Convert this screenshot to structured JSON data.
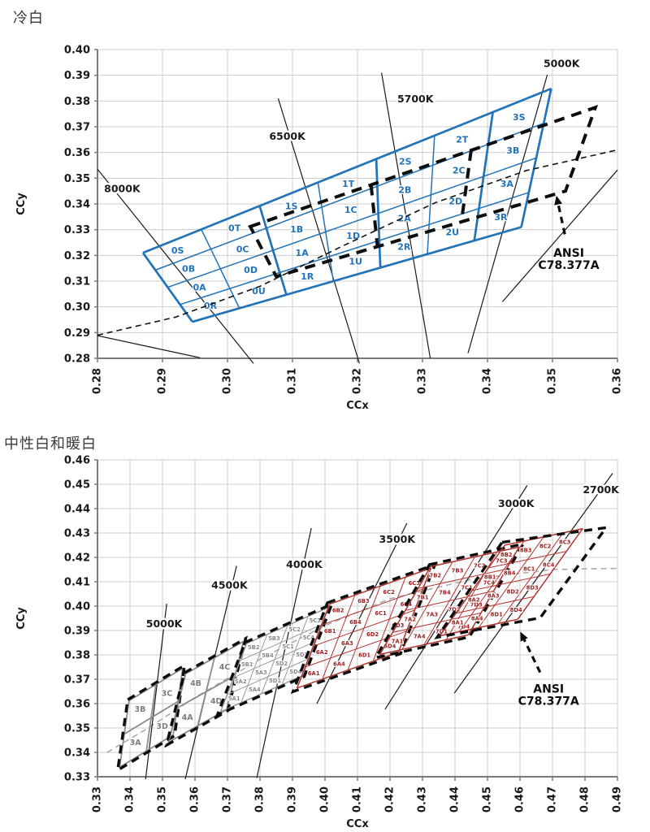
{
  "page": {
    "background": "#ffffff",
    "standard": "ANSI C78.377A"
  },
  "chart_data": [
    {
      "type": "line",
      "title": "冷白",
      "xlabel": "CCx",
      "ylabel": "CCy",
      "x_min": 0.28,
      "x_max": 0.36,
      "y_min": 0.28,
      "y_max": 0.4,
      "grid": true,
      "x_ticks": [
        "0.28",
        "0.29",
        "0.30",
        "0.31",
        "0.32",
        "0.33",
        "0.34",
        "0.35",
        "0.36"
      ],
      "y_ticks": [
        "0.28",
        "0.29",
        "0.30",
        "0.31",
        "0.32",
        "0.33",
        "0.34",
        "0.35",
        "0.36",
        "0.37",
        "0.38",
        "0.39",
        "0.40"
      ],
      "cct_lines": [
        {
          "label": "8000K",
          "x1": 0.28,
          "y1": 0.3535,
          "x2": 0.304,
          "y2": 0.278,
          "lx": 0.2838,
          "ly": 0.3458
        },
        {
          "label": "6500K",
          "x1": 0.3078,
          "y1": 0.381,
          "x2": 0.3203,
          "y2": 0.278,
          "lx": 0.3092,
          "ly": 0.3662
        },
        {
          "label": "5700K",
          "x1": 0.3237,
          "y1": 0.391,
          "x2": 0.3312,
          "y2": 0.28,
          "lx": 0.3289,
          "ly": 0.3808
        },
        {
          "label": "5000K",
          "x1": 0.3492,
          "y1": 0.3902,
          "x2": 0.337,
          "y2": 0.282,
          "lx": 0.3514,
          "ly": 0.3945
        },
        {
          "label": "",
          "x1": 0.36,
          "y1": 0.3532,
          "x2": 0.3423,
          "y2": 0.302
        },
        {
          "label": "",
          "x1": 0.28,
          "y1": 0.2888,
          "x2": 0.2958,
          "y2": 0.2802
        }
      ],
      "locus_dashed": {
        "color": "#111111",
        "points": [
          [
            0.28,
            0.289
          ],
          [
            0.292,
            0.296
          ],
          [
            0.305,
            0.308
          ],
          [
            0.318,
            0.324
          ],
          [
            0.332,
            0.3405
          ],
          [
            0.346,
            0.353
          ],
          [
            0.36,
            0.361
          ]
        ]
      },
      "locus_on_top": true,
      "bin_grids": [
        {
          "name": "cool-white-bins",
          "line_color": "#2273b8",
          "label_color": "#2273b8",
          "font": 11,
          "thin": 1.5,
          "thick": 2.7,
          "thick_cols": [
            0,
            2,
            4,
            6,
            7
          ],
          "corners": {
            "tl": [
              0.287,
              0.321
            ],
            "tr": [
              0.3498,
              0.3848
            ],
            "br": [
              0.3452,
              0.331
            ],
            "bl": [
              0.2946,
              0.2942
            ]
          },
          "labels": [
            [
              "0S",
              "0T",
              "1S",
              "1T",
              "2S",
              "2T",
              "3S"
            ],
            [
              "0B",
              "0C",
              "1B",
              "1C",
              "2B",
              "2C",
              "3B"
            ],
            [
              "0A",
              "0D",
              "1A",
              "1D",
              "2A",
              "2D",
              "3A"
            ],
            [
              "0R",
              "0U",
              "1R",
              "1U",
              "2R",
              "2U",
              "3R"
            ]
          ]
        }
      ],
      "ansi_overlays": [
        {
          "corners": {
            "tl": [
              0.3035,
              0.3312
            ],
            "tr": [
              0.3566,
              0.3775
            ],
            "br": [
              0.352,
              0.345
            ],
            "bl": [
              0.3075,
              0.3118
            ]
          },
          "dividers": [
            0.35,
            0.64
          ]
        }
      ],
      "annotation": {
        "lines": [
          "ANSI",
          "C78.377A"
        ],
        "x": 0.3525,
        "y": 0.3195,
        "line_step": 0.0048,
        "arrow": {
          "x1": 0.3519,
          "y1": 0.3282,
          "x2": 0.3506,
          "y2": 0.3432
        }
      }
    },
    {
      "type": "line",
      "title": "中性白和暖白",
      "xlabel": "CCx",
      "ylabel": "CCy",
      "x_min": 0.33,
      "x_max": 0.49,
      "y_min": 0.33,
      "y_max": 0.46,
      "grid": true,
      "x_ticks": [
        "0.33",
        "0.34",
        "0.35",
        "0.36",
        "0.37",
        "0.38",
        "0.39",
        "0.40",
        "0.41",
        "0.42",
        "0.43",
        "0.44",
        "0.45",
        "0.46",
        "0.47",
        "0.48",
        "0.49"
      ],
      "y_ticks": [
        "0.33",
        "0.34",
        "0.35",
        "0.36",
        "0.37",
        "0.38",
        "0.39",
        "0.40",
        "0.41",
        "0.42",
        "0.43",
        "0.44",
        "0.45",
        "0.46"
      ],
      "cct_lines": [
        {
          "label": "5000K",
          "x1": 0.3513,
          "y1": 0.401,
          "x2": 0.3448,
          "y2": 0.329,
          "lx": 0.3505,
          "ly": 0.3927
        },
        {
          "label": "4500K",
          "x1": 0.3728,
          "y1": 0.4165,
          "x2": 0.357,
          "y2": 0.329,
          "lx": 0.3706,
          "ly": 0.4085
        },
        {
          "label": "4000K",
          "x1": 0.3958,
          "y1": 0.432,
          "x2": 0.379,
          "y2": 0.3295,
          "lx": 0.3936,
          "ly": 0.417
        },
        {
          "label": "3500K",
          "x1": 0.4252,
          "y1": 0.434,
          "x2": 0.3975,
          "y2": 0.36,
          "lx": 0.4222,
          "ly": 0.4273
        },
        {
          "label": "3000K",
          "x1": 0.4622,
          "y1": 0.4495,
          "x2": 0.4185,
          "y2": 0.3577,
          "lx": 0.4588,
          "ly": 0.442
        },
        {
          "label": "2700K",
          "x1": 0.4885,
          "y1": 0.4545,
          "x2": 0.4398,
          "y2": 0.3643,
          "lx": 0.4849,
          "ly": 0.4477
        }
      ],
      "locus_dashed": {
        "color": "#aaaaaa",
        "points": [
          [
            0.333,
            0.34
          ],
          [
            0.345,
            0.3495
          ],
          [
            0.36,
            0.3625
          ],
          [
            0.38,
            0.3782
          ],
          [
            0.4,
            0.392
          ],
          [
            0.42,
            0.403
          ],
          [
            0.445,
            0.411
          ],
          [
            0.47,
            0.415
          ],
          [
            0.49,
            0.4155
          ]
        ]
      },
      "locus_on_top": false,
      "bin_grids": [
        {
          "name": "bins-5000K-group3",
          "line_color": "#8c8c8c",
          "label_color": "#7d7d7d",
          "font": 9.5,
          "thin": 1.8,
          "thick": 1.8,
          "dash_outline": "auto",
          "corners": {
            "tl": [
              0.3397,
              0.3612
            ],
            "tr": [
              0.3562,
              0.3745
            ],
            "br": [
              0.3533,
              0.3472
            ],
            "bl": [
              0.3368,
              0.3339
            ]
          },
          "labels": [
            [
              "3B",
              "3C"
            ],
            [
              "3A",
              "3D"
            ]
          ]
        },
        {
          "name": "bins-4500K-group4",
          "line_color": "#8c8c8c",
          "label_color": "#7d7d7d",
          "font": 9.5,
          "thin": 1.8,
          "thick": 1.8,
          "dash_outline": "auto",
          "corners": {
            "tl": [
              0.3571,
              0.3722
            ],
            "tr": [
              0.3749,
              0.3855
            ],
            "br": [
              0.3697,
              0.3575
            ],
            "bl": [
              0.3519,
              0.3442
            ]
          },
          "labels": [
            [
              "4B",
              "4C"
            ],
            [
              "4A",
              "4D"
            ]
          ]
        },
        {
          "name": "bins-4000K-group5",
          "line_color": "#9a9a9a",
          "label_color": "#8a8a8a",
          "font": 6.8,
          "thin": 1.0,
          "thick": 1.5,
          "dash_outline": "auto",
          "corners": {
            "tl": [
              0.3759,
              0.3847
            ],
            "tr": [
              0.4011,
              0.3995
            ],
            "br": [
              0.3931,
              0.3715
            ],
            "bl": [
              0.3679,
              0.3567
            ]
          },
          "labels": [
            [
              "5B2",
              "5B3",
              "5C2",
              "5C3"
            ],
            [
              "5B1",
              "5B4",
              "5C1",
              "5C4"
            ],
            [
              "5A2",
              "5A3",
              "5D2",
              "5D3"
            ],
            [
              "5A1",
              "5A4",
              "5D1",
              "5D4"
            ]
          ]
        },
        {
          "name": "bins-3500K-group6",
          "line_color": "#b03531",
          "label_color": "#9e1f1f",
          "font": 6.8,
          "thin": 1.0,
          "thick": 1.5,
          "dash_outline": "auto",
          "corners": {
            "tl": [
              0.4014,
              0.4008
            ],
            "tr": [
              0.4326,
              0.4156
            ],
            "br": [
              0.4226,
              0.3811
            ],
            "bl": [
              0.3914,
              0.3664
            ]
          },
          "labels": [
            [
              "6B2",
              "6B3",
              "6C2",
              "6C3"
            ],
            [
              "6B1",
              "6B4",
              "6C1",
              "6C4"
            ],
            [
              "6A2",
              "6A3",
              "6D2",
              "6D3"
            ],
            [
              "6A1",
              "6A4",
              "6D1",
              "6D4"
            ]
          ]
        },
        {
          "name": "bins-3000K-group7",
          "line_color": "#b03531",
          "label_color": "#9e1f1f",
          "font": 6.8,
          "thin": 1.0,
          "thick": 1.5,
          "dash_outline": "auto",
          "corners": {
            "tl": [
              0.4325,
              0.4162
            ],
            "tr": [
              0.4597,
              0.4242
            ],
            "br": [
              0.4441,
              0.3882
            ],
            "bl": [
              0.4169,
              0.3802
            ]
          },
          "labels": [
            [
              "7B2",
              "7B3",
              "7C2",
              "7C3"
            ],
            [
              "7B1",
              "7B4",
              "7C1",
              "7C4"
            ],
            [
              "7A2",
              "7A3",
              "7D2",
              "7D3"
            ],
            [
              "7A1",
              "7A4",
              "7D1",
              "7D4"
            ]
          ]
        },
        {
          "name": "bins-2700K-group8",
          "line_color": "#b03531",
          "label_color": "#9e1f1f",
          "font": 6.8,
          "thin": 1.0,
          "thick": 1.5,
          "dash_outline": {
            "tl": [
              0.4545,
              0.4262
            ],
            "tr": [
              0.4865,
              0.4322
            ],
            "br": [
              0.4662,
              0.3952
            ],
            "bl": [
              0.4345,
              0.3872
            ]
          },
          "corners": {
            "tl": [
              0.4553,
              0.425
            ],
            "tr": [
              0.4793,
              0.4318
            ],
            "br": [
              0.4593,
              0.3946
            ],
            "bl": [
              0.4353,
              0.3878
            ]
          },
          "labels": [
            [
              "8B2",
              "8B3",
              "8C2",
              "8C3"
            ],
            [
              "8B1",
              "8B4",
              "8C1",
              "8C4"
            ],
            [
              "8A2",
              "8A3",
              "8D2",
              "8D3"
            ],
            [
              "8A1",
              "8A4",
              "8D1",
              "8D4"
            ]
          ]
        }
      ],
      "ansi_overlays": [],
      "annotation": {
        "lines": [
          "ANSI",
          "C78.377A"
        ],
        "x": 0.4688,
        "y": 0.3645,
        "line_step": 0.005,
        "arrow": {
          "x1": 0.4662,
          "y1": 0.3728,
          "x2": 0.4601,
          "y2": 0.3895
        }
      }
    }
  ]
}
